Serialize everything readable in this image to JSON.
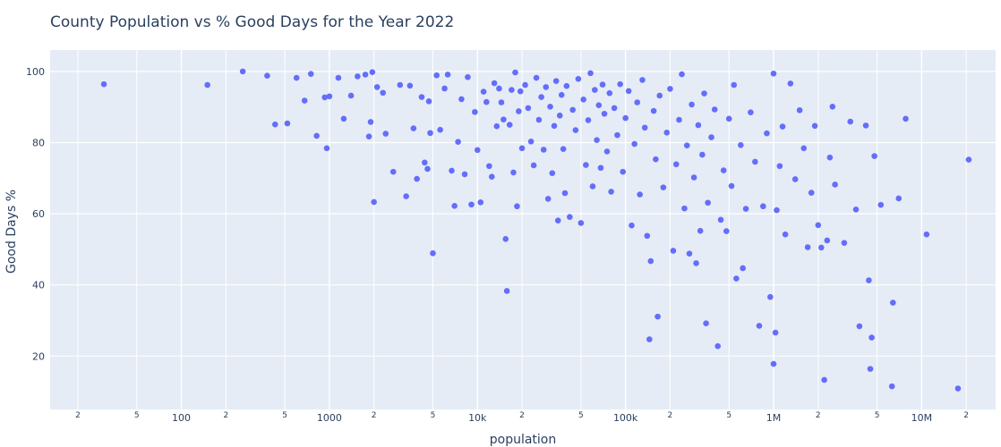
{
  "chart_data": {
    "type": "scatter",
    "title": "County Population vs % Good Days for the Year 2022",
    "xlabel": "population",
    "ylabel": "Good Days %",
    "x_scale": "log",
    "xlim": [
      13,
      31600000
    ],
    "ylim": [
      5,
      106
    ],
    "grid": true,
    "marker_color": "#636efa",
    "plot_background": "#e5ecf6",
    "x_ticks": [
      {
        "value": 20,
        "label": "2",
        "minor": true
      },
      {
        "value": 50,
        "label": "5",
        "minor": true
      },
      {
        "value": 100,
        "label": "100",
        "minor": false
      },
      {
        "value": 200,
        "label": "2",
        "minor": true
      },
      {
        "value": 500,
        "label": "5",
        "minor": true
      },
      {
        "value": 1000,
        "label": "1000",
        "minor": false
      },
      {
        "value": 2000,
        "label": "2",
        "minor": true
      },
      {
        "value": 5000,
        "label": "5",
        "minor": true
      },
      {
        "value": 10000,
        "label": "10k",
        "minor": false
      },
      {
        "value": 20000,
        "label": "2",
        "minor": true
      },
      {
        "value": 50000,
        "label": "5",
        "minor": true
      },
      {
        "value": 100000,
        "label": "100k",
        "minor": false
      },
      {
        "value": 200000,
        "label": "2",
        "minor": true
      },
      {
        "value": 500000,
        "label": "5",
        "minor": true
      },
      {
        "value": 1000000,
        "label": "1M",
        "minor": false
      },
      {
        "value": 2000000,
        "label": "2",
        "minor": true
      },
      {
        "value": 5000000,
        "label": "5",
        "minor": true
      },
      {
        "value": 10000000,
        "label": "10M",
        "minor": false
      },
      {
        "value": 20000000,
        "label": "2",
        "minor": true
      }
    ],
    "y_ticks": [
      {
        "value": 20,
        "label": "20"
      },
      {
        "value": 40,
        "label": "40"
      },
      {
        "value": 60,
        "label": "60"
      },
      {
        "value": 80,
        "label": "80"
      },
      {
        "value": 100,
        "label": "100"
      }
    ],
    "points": [
      [
        30,
        96.4
      ],
      [
        150,
        96.2
      ],
      [
        260,
        100
      ],
      [
        380,
        98.8
      ],
      [
        430,
        85.1
      ],
      [
        520,
        85.4
      ],
      [
        600,
        98.2
      ],
      [
        680,
        91.8
      ],
      [
        750,
        99.3
      ],
      [
        820,
        81.9
      ],
      [
        930,
        92.7
      ],
      [
        960,
        78.4
      ],
      [
        1000,
        93
      ],
      [
        1150,
        98.2
      ],
      [
        1250,
        86.7
      ],
      [
        1400,
        93.2
      ],
      [
        1550,
        98.6
      ],
      [
        1750,
        99.1
      ],
      [
        1850,
        81.7
      ],
      [
        1950,
        99.8
      ],
      [
        1900,
        85.8
      ],
      [
        2000,
        63.3
      ],
      [
        2100,
        95.6
      ],
      [
        2300,
        94
      ],
      [
        2400,
        82.5
      ],
      [
        2700,
        71.8
      ],
      [
        3000,
        96.2
      ],
      [
        3300,
        64.9
      ],
      [
        3500,
        96
      ],
      [
        3700,
        84
      ],
      [
        3900,
        69.8
      ],
      [
        4200,
        92.8
      ],
      [
        4400,
        74.4
      ],
      [
        4600,
        72.6
      ],
      [
        4700,
        91.6
      ],
      [
        4800,
        82.7
      ],
      [
        5000,
        48.9
      ],
      [
        5300,
        98.9
      ],
      [
        5600,
        83.6
      ],
      [
        6000,
        95.2
      ],
      [
        6300,
        99.1
      ],
      [
        6700,
        72.1
      ],
      [
        7000,
        62.2
      ],
      [
        7400,
        80.2
      ],
      [
        7800,
        92.2
      ],
      [
        8200,
        71.1
      ],
      [
        8600,
        98.4
      ],
      [
        9100,
        62.6
      ],
      [
        9600,
        88.6
      ],
      [
        10000,
        77.9
      ],
      [
        10500,
        63.2
      ],
      [
        11000,
        94.3
      ],
      [
        11500,
        91.4
      ],
      [
        12000,
        73.4
      ],
      [
        12500,
        70.4
      ],
      [
        13000,
        96.7
      ],
      [
        13500,
        84.6
      ],
      [
        14000,
        95.2
      ],
      [
        14500,
        91.3
      ],
      [
        15000,
        86.5
      ],
      [
        15500,
        52.9
      ],
      [
        15800,
        38.3
      ],
      [
        16500,
        85
      ],
      [
        17000,
        94.8
      ],
      [
        17500,
        71.6
      ],
      [
        18000,
        99.7
      ],
      [
        18500,
        62.1
      ],
      [
        19000,
        88.8
      ],
      [
        19500,
        94.4
      ],
      [
        20000,
        78.4
      ],
      [
        21000,
        96.2
      ],
      [
        22000,
        89.7
      ],
      [
        23000,
        80.3
      ],
      [
        24000,
        73.6
      ],
      [
        25000,
        98.2
      ],
      [
        26000,
        86.4
      ],
      [
        27000,
        92.8
      ],
      [
        28000,
        78
      ],
      [
        29000,
        95.6
      ],
      [
        30000,
        64.2
      ],
      [
        31000,
        90.1
      ],
      [
        32000,
        71.4
      ],
      [
        33000,
        84.7
      ],
      [
        34000,
        97.3
      ],
      [
        35000,
        58.1
      ],
      [
        36000,
        87.6
      ],
      [
        37000,
        93.4
      ],
      [
        38000,
        78.2
      ],
      [
        39000,
        65.8
      ],
      [
        40000,
        95.9
      ],
      [
        42000,
        59.1
      ],
      [
        44000,
        89.2
      ],
      [
        46000,
        83.5
      ],
      [
        48000,
        97.9
      ],
      [
        50000,
        57.4
      ],
      [
        52000,
        92.1
      ],
      [
        54000,
        73.7
      ],
      [
        56000,
        86.3
      ],
      [
        58000,
        99.5
      ],
      [
        60000,
        67.7
      ],
      [
        62000,
        94.8
      ],
      [
        64000,
        80.7
      ],
      [
        66000,
        90.5
      ],
      [
        68000,
        72.9
      ],
      [
        70000,
        96.3
      ],
      [
        72000,
        88.1
      ],
      [
        75000,
        77.5
      ],
      [
        78000,
        93.9
      ],
      [
        80000,
        66.2
      ],
      [
        84000,
        89.7
      ],
      [
        88000,
        82.1
      ],
      [
        92000,
        96.4
      ],
      [
        96000,
        71.8
      ],
      [
        100000,
        86.9
      ],
      [
        105000,
        94.5
      ],
      [
        110000,
        56.7
      ],
      [
        115000,
        79.6
      ],
      [
        120000,
        91.3
      ],
      [
        125000,
        65.4
      ],
      [
        130000,
        97.6
      ],
      [
        135000,
        84.2
      ],
      [
        140000,
        53.8
      ],
      [
        145000,
        24.7
      ],
      [
        148000,
        46.7
      ],
      [
        155000,
        88.9
      ],
      [
        160000,
        75.3
      ],
      [
        165000,
        31.1
      ],
      [
        170000,
        93.2
      ],
      [
        180000,
        67.4
      ],
      [
        190000,
        82.8
      ],
      [
        200000,
        95.1
      ],
      [
        210000,
        49.6
      ],
      [
        220000,
        73.9
      ],
      [
        230000,
        86.4
      ],
      [
        240000,
        99.2
      ],
      [
        250000,
        61.5
      ],
      [
        260000,
        79.2
      ],
      [
        270000,
        48.8
      ],
      [
        280000,
        90.7
      ],
      [
        290000,
        70.2
      ],
      [
        300000,
        46.1
      ],
      [
        310000,
        84.9
      ],
      [
        320000,
        55.2
      ],
      [
        330000,
        76.6
      ],
      [
        340000,
        93.8
      ],
      [
        350000,
        29.2
      ],
      [
        360000,
        63.1
      ],
      [
        380000,
        81.5
      ],
      [
        400000,
        89.3
      ],
      [
        420000,
        22.8
      ],
      [
        440000,
        58.3
      ],
      [
        460000,
        72.2
      ],
      [
        480000,
        55.1
      ],
      [
        500000,
        86.7
      ],
      [
        520000,
        67.8
      ],
      [
        540000,
        96.2
      ],
      [
        560000,
        41.8
      ],
      [
        600000,
        79.3
      ],
      [
        620000,
        44.7
      ],
      [
        650000,
        61.4
      ],
      [
        700000,
        88.5
      ],
      [
        750000,
        74.6
      ],
      [
        800000,
        28.5
      ],
      [
        850000,
        62.1
      ],
      [
        900000,
        82.6
      ],
      [
        950000,
        36.6
      ],
      [
        1000000,
        17.8
      ],
      [
        1000000,
        99.4
      ],
      [
        1030000,
        26.6
      ],
      [
        1050000,
        61
      ],
      [
        1100000,
        73.4
      ],
      [
        1150000,
        84.5
      ],
      [
        1200000,
        54.2
      ],
      [
        1300000,
        96.6
      ],
      [
        1400000,
        69.7
      ],
      [
        1500000,
        89.1
      ],
      [
        1600000,
        78.4
      ],
      [
        1700000,
        50.6
      ],
      [
        1800000,
        65.9
      ],
      [
        1900000,
        84.7
      ],
      [
        2000000,
        56.8
      ],
      [
        2100000,
        50.5
      ],
      [
        2200000,
        13.3
      ],
      [
        2300000,
        52.5
      ],
      [
        2400000,
        75.8
      ],
      [
        2500000,
        90.1
      ],
      [
        2600000,
        68.2
      ],
      [
        3000000,
        51.8
      ],
      [
        3300000,
        85.9
      ],
      [
        3600000,
        61.2
      ],
      [
        3800000,
        28.4
      ],
      [
        4200000,
        84.8
      ],
      [
        4400000,
        41.3
      ],
      [
        4600000,
        25.2
      ],
      [
        4500000,
        16.4
      ],
      [
        4800000,
        76.2
      ],
      [
        5300000,
        62.5
      ],
      [
        6300000,
        11.5
      ],
      [
        6400000,
        35
      ],
      [
        7000000,
        64.3
      ],
      [
        7800000,
        86.7
      ],
      [
        10800000,
        54.2
      ],
      [
        17600000,
        10.9
      ],
      [
        20800000,
        75.2
      ]
    ]
  }
}
